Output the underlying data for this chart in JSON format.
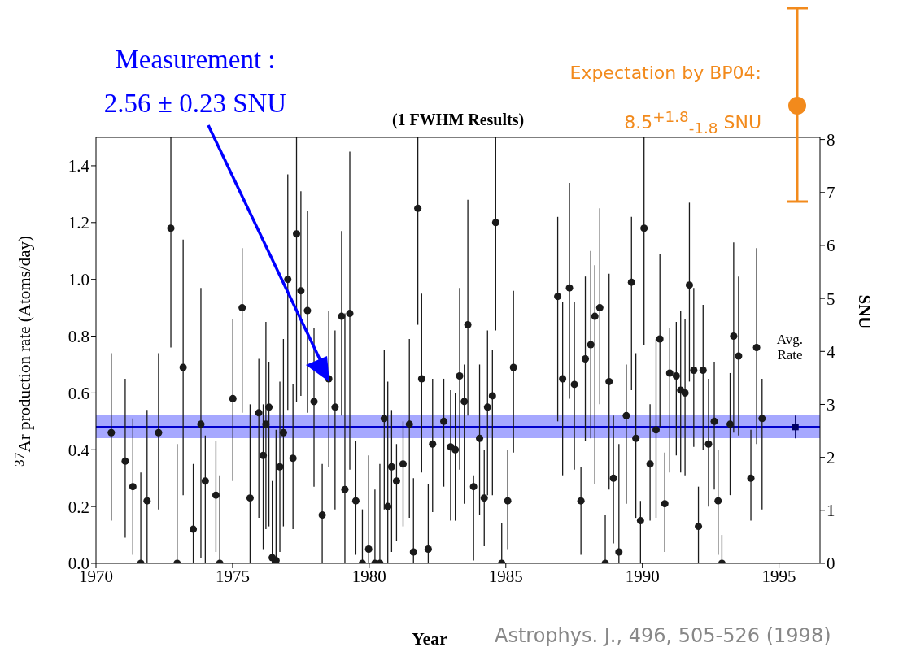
{
  "chart_data": {
    "type": "scatter",
    "title": "(1 FWHM Results)",
    "xlabel": "Year",
    "ylabel": "$^{37}$Ar production rate (Atoms/day)",
    "y2label": "SNU",
    "xlim": [
      1970,
      1996.5
    ],
    "xticks": [
      1970,
      1975,
      1980,
      1985,
      1990,
      1995
    ],
    "ylim": [
      0,
      1.5
    ],
    "yticks": [
      {
        "value": 0,
        "label": "0.0"
      },
      0.2,
      0.4,
      0.6,
      0.8,
      {
        "value": 1,
        "label": "1.0"
      },
      1.2,
      1.4
    ],
    "y2lim": [
      0,
      8.04
    ],
    "y2ticks": [
      0,
      1,
      2,
      3,
      4,
      5,
      6,
      7,
      8
    ],
    "marker": "circle",
    "series": [
      {
        "color": "#1a1a1a",
        "x": [
          1970.56,
          1971.07,
          1971.35,
          1971.64,
          1971.87,
          1972.29,
          1972.74,
          1972.97,
          1973.19,
          1973.56,
          1973.84,
          1974.0,
          1974.39,
          1974.53,
          1975.01,
          1975.35,
          1975.64,
          1975.96,
          1976.12,
          1976.22,
          1976.33,
          1976.45,
          1976.59,
          1976.73,
          1976.86,
          1977.02,
          1977.21,
          1977.34,
          1977.5,
          1977.74,
          1977.98,
          1978.28,
          1978.52,
          1978.75,
          1978.99,
          1979.11,
          1979.29,
          1979.51,
          1979.75,
          1979.98,
          1980.21,
          1980.39,
          1980.55,
          1980.68,
          1980.82,
          1981.0,
          1981.24,
          1981.47,
          1981.62,
          1981.78,
          1981.92,
          1982.16,
          1982.32,
          1982.73,
          1982.98,
          1983.15,
          1983.31,
          1983.48,
          1983.61,
          1983.82,
          1984.04,
          1984.21,
          1984.33,
          1984.51,
          1984.63,
          1984.85,
          1985.07,
          1985.28,
          1986.9,
          1987.08,
          1987.33,
          1987.51,
          1987.75,
          1987.91,
          1988.11,
          1988.26,
          1988.44,
          1988.64,
          1988.78,
          1988.94,
          1989.14,
          1989.41,
          1989.6,
          1989.76,
          1989.93,
          1990.06,
          1990.28,
          1990.5,
          1990.64,
          1990.82,
          1991.0,
          1991.24,
          1991.4,
          1991.56,
          1991.72,
          1991.88,
          1992.05,
          1992.22,
          1992.42,
          1992.63,
          1992.77,
          1992.91,
          1993.21,
          1993.34,
          1993.52,
          1993.97,
          1994.18,
          1994.38
        ],
        "values": [
          0.46,
          0.36,
          0.27,
          0,
          0.22,
          0.46,
          1.18,
          0,
          0.69,
          0.12,
          0.49,
          0.29,
          0.24,
          0,
          0.58,
          0.9,
          0.23,
          0.53,
          0.38,
          0.49,
          0.55,
          0.02,
          0.01,
          0.34,
          0.46,
          1.0,
          0.37,
          1.16,
          0.96,
          0.89,
          0.57,
          0.17,
          0.65,
          0.55,
          0.87,
          0.26,
          0.88,
          0.22,
          0,
          0.05,
          0,
          0,
          0.51,
          0.2,
          0.34,
          0.29,
          0.35,
          0.49,
          0.04,
          1.25,
          0.65,
          0.05,
          0.42,
          0.5,
          0.41,
          0.4,
          0.66,
          0.57,
          0.84,
          0.27,
          0.44,
          0.23,
          0.55,
          0.59,
          1.2,
          0,
          0.22,
          0.69,
          0.94,
          0.65,
          0.97,
          0.63,
          0.22,
          0.72,
          0.77,
          0.87,
          0.9,
          0,
          0.64,
          0.3,
          0.04,
          0.52,
          0.99,
          0.44,
          0.15,
          1.18,
          0.35,
          0.47,
          0.79,
          0.21,
          0.67,
          0.66,
          0.61,
          0.6,
          0.98,
          0.68,
          0.13,
          0.68,
          0.42,
          0.5,
          0.22,
          0,
          0.49,
          0.8,
          0.73,
          0.3,
          0.76,
          0.51
        ],
        "errors": [
          [
            0.15,
            0.74
          ],
          [
            0.09,
            0.65
          ],
          [
            0.03,
            0.51
          ],
          [
            0,
            0.32
          ],
          [
            0,
            0.54
          ],
          [
            0.19,
            0.74
          ],
          [
            0.76,
            1.5
          ],
          [
            0,
            0.42
          ],
          [
            0.24,
            1.14
          ],
          [
            0,
            0.35
          ],
          [
            0.02,
            0.97
          ],
          [
            0,
            0.45
          ],
          [
            0.04,
            0.43
          ],
          [
            0,
            0.31
          ],
          [
            0.29,
            0.86
          ],
          [
            0.53,
            1.11
          ],
          [
            0,
            0.56
          ],
          [
            0.16,
            0.72
          ],
          [
            0.05,
            0.56
          ],
          [
            0.12,
            0.85
          ],
          [
            0.13,
            0.71
          ],
          [
            0,
            0.29
          ],
          [
            0,
            0.47
          ],
          [
            0.04,
            0.64
          ],
          [
            0.13,
            0.79
          ],
          [
            0.54,
            1.37
          ],
          [
            0.12,
            0.63
          ],
          [
            0.57,
            1.5
          ],
          [
            0.59,
            1.31
          ],
          [
            0.53,
            1.24
          ],
          [
            0.27,
            0.83
          ],
          [
            0,
            0.35
          ],
          [
            0.34,
            0.89
          ],
          [
            0.19,
            0.82
          ],
          [
            0.52,
            1.17
          ],
          [
            0,
            0.88
          ],
          [
            0.33,
            1.45
          ],
          [
            0.03,
            0.43
          ],
          [
            0,
            0.19
          ],
          [
            0,
            0.38
          ],
          [
            0,
            0.26
          ],
          [
            0,
            0.35
          ],
          [
            0.19,
            0.75
          ],
          [
            0,
            0.64
          ],
          [
            0.04,
            0.54
          ],
          [
            0.08,
            0.42
          ],
          [
            0.13,
            0.5
          ],
          [
            0.16,
            0.79
          ],
          [
            0,
            0.3
          ],
          [
            0.84,
            1.5
          ],
          [
            0.32,
            0.95
          ],
          [
            0,
            0.28
          ],
          [
            0.18,
            0.65
          ],
          [
            0.27,
            0.65
          ],
          [
            0.15,
            0.61
          ],
          [
            0.15,
            0.6
          ],
          [
            0.33,
            0.97
          ],
          [
            0.21,
            0.7
          ],
          [
            0.52,
            1.28
          ],
          [
            0.01,
            0.31
          ],
          [
            0.17,
            0.7
          ],
          [
            0.06,
            0.4
          ],
          [
            0.24,
            0.82
          ],
          [
            0.24,
            0.75
          ],
          [
            0.82,
            1.5
          ],
          [
            0,
            0.14
          ],
          [
            0.05,
            0.4
          ],
          [
            0.39,
            0.96
          ],
          [
            0.5,
            1.22
          ],
          [
            0.31,
            0.92
          ],
          [
            0.58,
            1.34
          ],
          [
            0.33,
            0.92
          ],
          [
            0.03,
            0.34
          ],
          [
            0.43,
            1.01
          ],
          [
            0.44,
            1.1
          ],
          [
            0.28,
            1.05
          ],
          [
            0.56,
            1.25
          ],
          [
            0,
            0.17
          ],
          [
            0.26,
            1.02
          ],
          [
            0.07,
            0.52
          ],
          [
            0,
            0.42
          ],
          [
            0.21,
            0.7
          ],
          [
            0.61,
            1.22
          ],
          [
            0.16,
            0.74
          ],
          [
            0,
            0.22
          ],
          [
            0.77,
            1.5
          ],
          [
            0.15,
            0.56
          ],
          [
            0.16,
            0.79
          ],
          [
            0.48,
            1.09
          ],
          [
            0.04,
            0.39
          ],
          [
            0.32,
            0.83
          ],
          [
            0.38,
            0.85
          ],
          [
            0.32,
            0.89
          ],
          [
            0.31,
            0.86
          ],
          [
            0.64,
            1.27
          ],
          [
            0.41,
            0.97
          ],
          [
            0,
            0.27
          ],
          [
            0.4,
            0.91
          ],
          [
            0.2,
            0.65
          ],
          [
            0.26,
            0.71
          ],
          [
            0.03,
            0.4
          ],
          [
            0,
            0.1
          ],
          [
            0.24,
            0.67
          ],
          [
            0.46,
            1.13
          ],
          [
            0.45,
            1.01
          ],
          [
            0.15,
            0.47
          ],
          [
            0.42,
            1.11
          ],
          [
            0.19,
            0.65
          ]
        ]
      },
      {
        "color": "#000066",
        "marker": "square",
        "x": [
          1995.6
        ],
        "values": [
          0.48
        ],
        "errors": [
          [
            0.44,
            0.52
          ]
        ]
      }
    ],
    "ref_lines": [
      {
        "axis": "y",
        "value": 0.48,
        "color": "#0000cc"
      }
    ],
    "bands": [
      {
        "axis": "y",
        "from": 0.44,
        "to": 0.52,
        "color": "#a6a8ff"
      }
    ],
    "annotations": [
      "Measurement :\n2.56 ± 0.23 SNU",
      "Expectation by BP04:\n8.5$^{+1.8}$$_{-1.8}$ SNU",
      "Avg. Rate",
      "Astrophys. J., 496, 505-526 (1998)"
    ]
  }
}
